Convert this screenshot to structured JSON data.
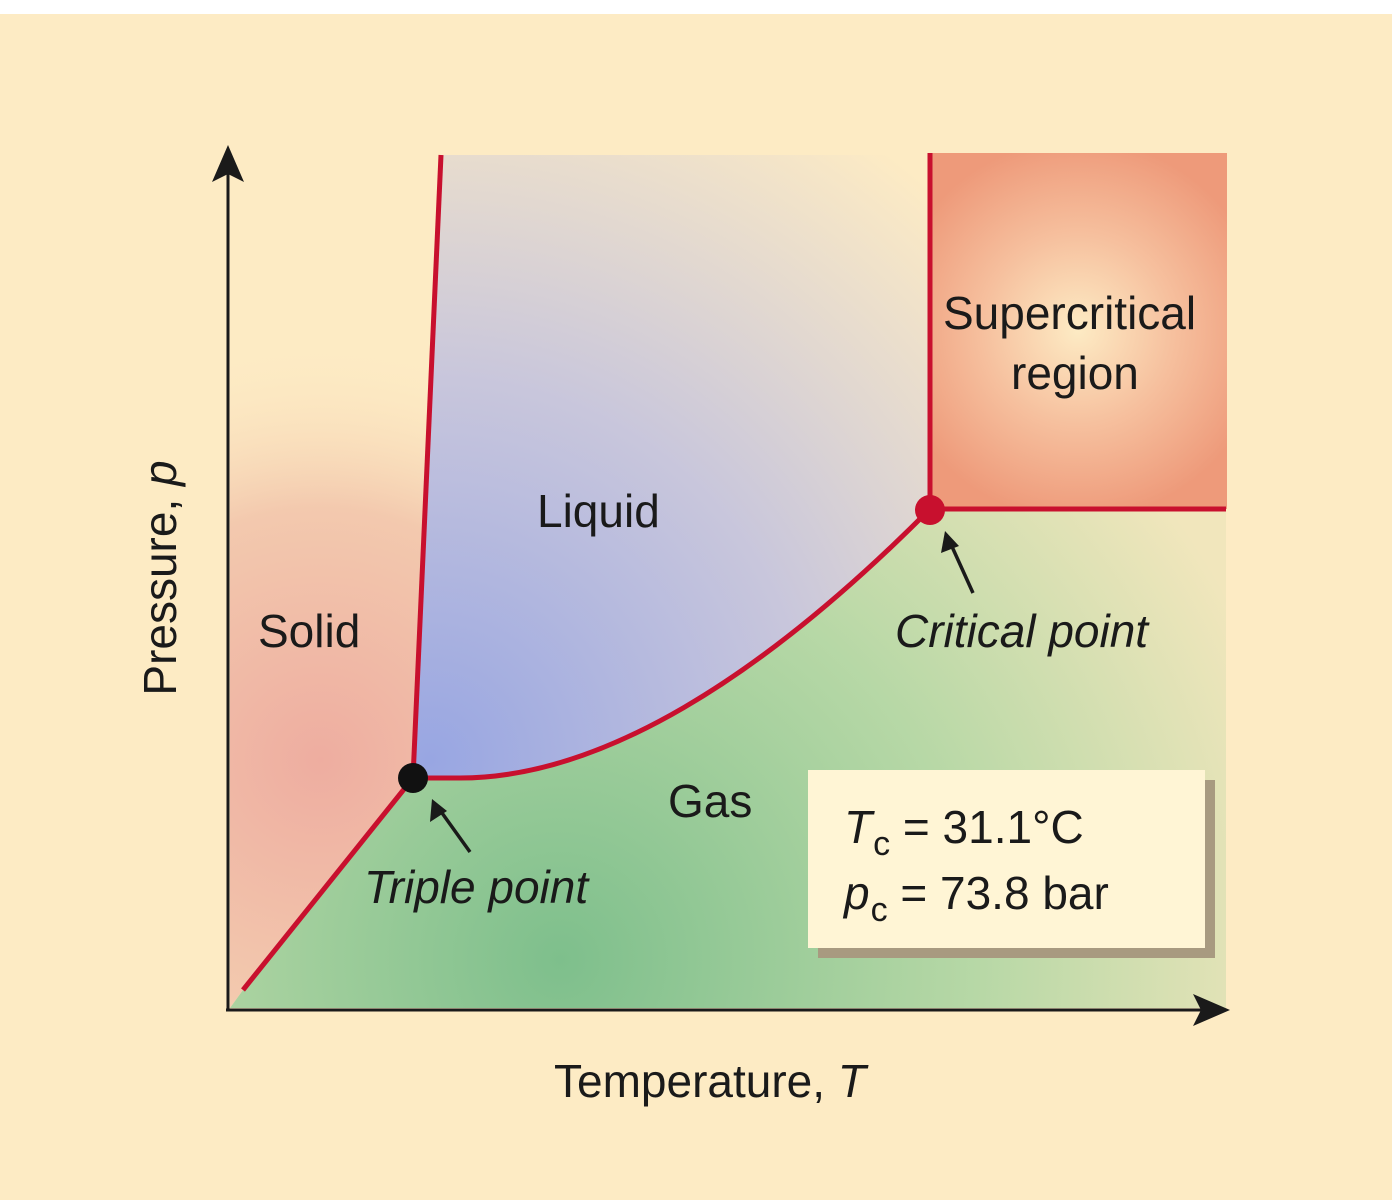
{
  "regions": {
    "solid": "Solid",
    "liquid": "Liquid",
    "gas": "Gas",
    "supercritical_line1": "Supercritical",
    "supercritical_line2": "region"
  },
  "points": {
    "triple": "Triple point",
    "critical": "Critical point"
  },
  "axes": {
    "x_label": "Temperature,",
    "x_symbol": "T",
    "y_label": "Pressure,",
    "y_symbol": "p"
  },
  "critical_values": {
    "temp_symbol": "T",
    "temp_sub": "c",
    "temp_value": "= 31.1°C",
    "pressure_symbol": "p",
    "pressure_sub": "c",
    "pressure_value": "= 73.8 bar"
  },
  "colors": {
    "background": "#fdebc4",
    "boundary": "#c8102e",
    "triple_point": "#111111",
    "critical_point": "#c8102e",
    "solid_region": "#eeb7a6",
    "liquid_region": "#a9b4e0",
    "gas_region": "#8cc496",
    "supercritical_region": "#ee9a7a"
  }
}
